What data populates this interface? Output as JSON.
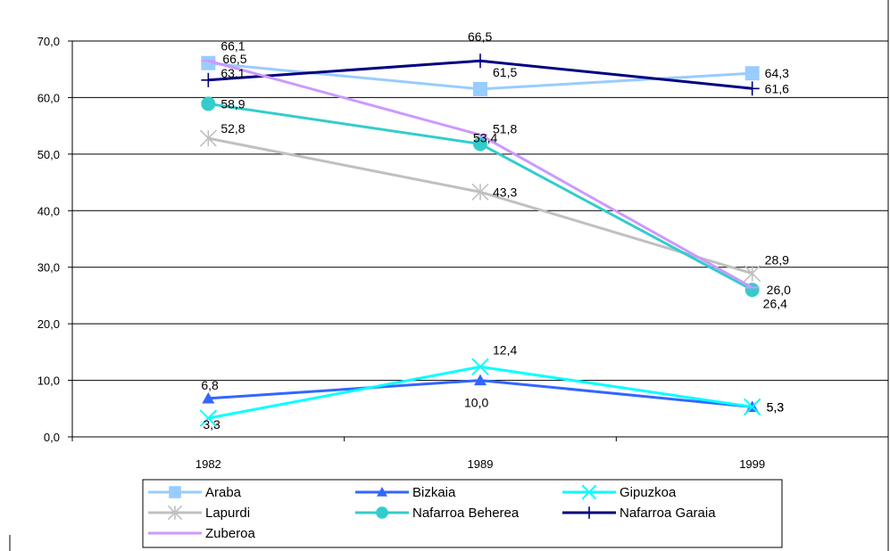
{
  "chart_data": {
    "type": "line",
    "title": "",
    "xlabel": "",
    "ylabel": "",
    "categories": [
      "1982",
      "1989",
      "1999"
    ],
    "ylim": [
      0,
      70
    ],
    "yticks": [
      "0,0",
      "10,0",
      "20,0",
      "30,0",
      "40,0",
      "50,0",
      "60,0",
      "70,0"
    ],
    "grid": "horizontal",
    "legend_position": "bottom",
    "series": [
      {
        "name": "Araba",
        "values": [
          66.1,
          61.5,
          64.3
        ],
        "labels": [
          "66,1",
          "61,5",
          "64,3"
        ],
        "color": "#99CCFF",
        "marker": "square"
      },
      {
        "name": "Bizkaia",
        "values": [
          6.8,
          10.0,
          5.3
        ],
        "labels": [
          "6,8",
          "10,0",
          "5,3"
        ],
        "color": "#3366FF",
        "marker": "triangle"
      },
      {
        "name": "Gipuzkoa",
        "values": [
          3.3,
          12.4,
          5.3
        ],
        "labels": [
          "3,3",
          "12,4",
          "5,3"
        ],
        "color": "#00FFFF",
        "marker": "x"
      },
      {
        "name": "Lapurdi",
        "values": [
          52.8,
          43.3,
          28.9
        ],
        "labels": [
          "52,8",
          "43,3",
          "28,9"
        ],
        "color": "#C0C0C0",
        "marker": "star"
      },
      {
        "name": "Nafarroa Beherea",
        "values": [
          58.9,
          51.8,
          26.0
        ],
        "labels": [
          "58,9",
          "51,8",
          "26,0"
        ],
        "color": "#33CCCC",
        "marker": "circle"
      },
      {
        "name": "Nafarroa Garaia",
        "values": [
          63.1,
          66.5,
          61.6
        ],
        "labels": [
          "63,1",
          "66,5",
          "61,6"
        ],
        "color": "#000080",
        "marker": "plus"
      },
      {
        "name": "Zuberoa",
        "values": [
          66.5,
          53.4,
          26.4
        ],
        "labels": [
          "66,5",
          "53,4",
          "26,4"
        ],
        "color": "#CC99FF",
        "marker": "dash"
      }
    ]
  }
}
